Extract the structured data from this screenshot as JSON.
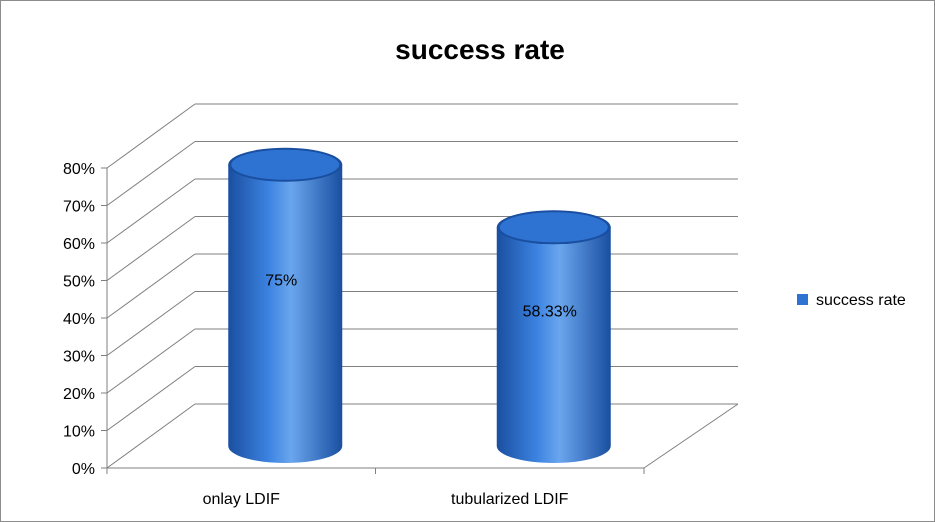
{
  "chart_data": {
    "type": "bar",
    "style": "3d-cylinder",
    "title": "success rate",
    "xlabel": "",
    "ylabel": "",
    "categories": [
      "onlay LDIF",
      "tubularized LDIF"
    ],
    "series": [
      {
        "name": "success rate",
        "values": [
          0.75,
          0.5833
        ],
        "data_labels": [
          "75%",
          "58.33%"
        ]
      }
    ],
    "ylim": [
      0,
      0.8
    ],
    "y_ticks": [
      0,
      0.1,
      0.2,
      0.3,
      0.4,
      0.5,
      0.6,
      0.7,
      0.8
    ],
    "y_tick_labels": [
      "0%",
      "10%",
      "20%",
      "30%",
      "40%",
      "50%",
      "60%",
      "70%",
      "80%"
    ],
    "grid": true,
    "legend_position": "right",
    "colors": {
      "series": "#2e72d2",
      "series_dark": "#1a4fa0",
      "series_light": "#6aa6ee",
      "grid": "#7f7f7f"
    }
  }
}
